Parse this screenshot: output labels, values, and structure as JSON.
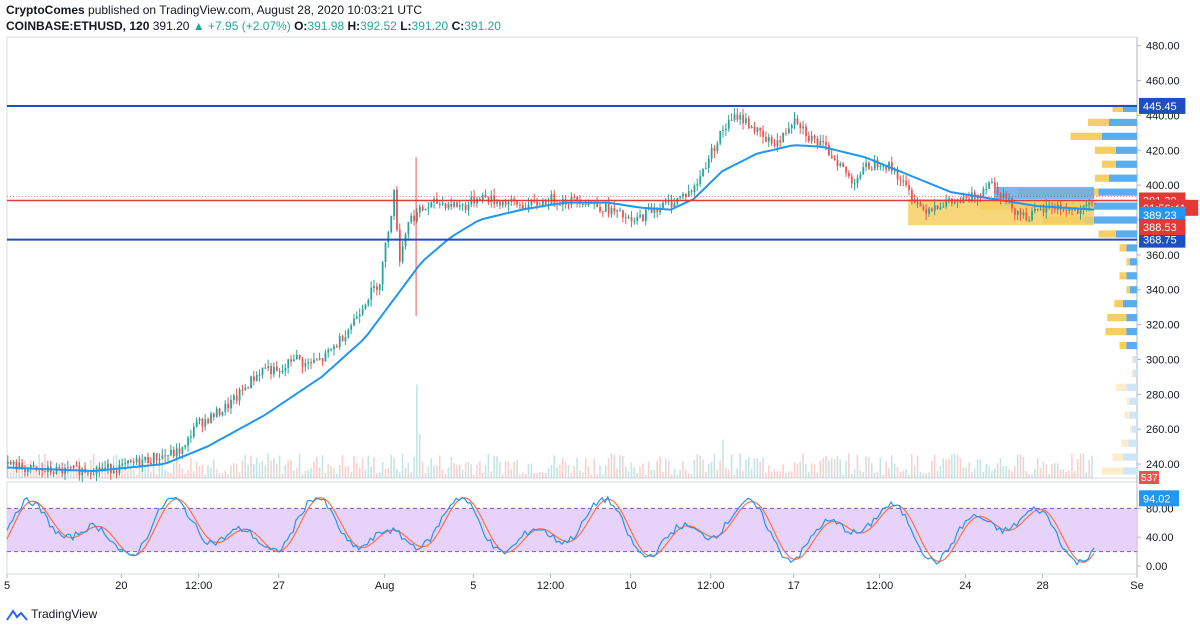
{
  "header": {
    "publisher": "CryptoComes",
    "published_text": "published on TradingView.com, August 28, 2020 10:03:21 UTC",
    "symbol": "COINBASE:ETHUSD, 120",
    "last": "391.20",
    "change": "+7.95 (+2.07%)",
    "o_label": "O:",
    "o": "391.98",
    "h_label": "H:",
    "h": "392.52",
    "l_label": "L:",
    "l": "391.20",
    "c_label": "C:",
    "c": "391.20"
  },
  "footer": {
    "brand": "TradingView"
  },
  "colors": {
    "up": "#26a69a",
    "down": "#ef5350",
    "ma": "#2196f3",
    "level_blue": "#1e4fbf",
    "level_red": "#e53935",
    "vp_blue": "#5aaeef",
    "vp_yellow": "#f6cf63",
    "stoch_fill": "#e1c8f7",
    "stoch_k": "#2196f3",
    "stoch_d": "#ff7043"
  },
  "chart_data": {
    "type": "candlestick",
    "y_ticks": [
      "480.00",
      "460.00",
      "440.00",
      "420.00",
      "400.00",
      "380.00",
      "360.00",
      "340.00",
      "320.00",
      "300.00",
      "280.00",
      "260.00",
      "240.00"
    ],
    "y_tick_values": [
      480,
      460,
      440,
      420,
      400,
      380,
      360,
      340,
      320,
      300,
      280,
      260,
      240
    ],
    "ylim": [
      232,
      485
    ],
    "x_ticks": [
      "5",
      "20",
      "12:00",
      "27",
      "Aug",
      "5",
      "12:00",
      "10",
      "12:00",
      "17",
      "12:00",
      "24",
      "28",
      "Se"
    ],
    "x_tick_index": [
      0,
      40,
      67,
      95,
      132,
      163,
      190,
      218,
      246,
      275,
      305,
      335,
      362,
      395
    ],
    "price_series": [
      [
        0,
        240
      ],
      [
        10,
        236
      ],
      [
        20,
        236
      ],
      [
        30,
        237
      ],
      [
        40,
        238
      ],
      [
        45,
        241
      ],
      [
        52,
        244
      ],
      [
        58,
        246
      ],
      [
        62,
        249
      ],
      [
        65,
        262
      ],
      [
        70,
        266
      ],
      [
        75,
        271
      ],
      [
        80,
        278
      ],
      [
        85,
        288
      ],
      [
        90,
        296
      ],
      [
        95,
        291
      ],
      [
        100,
        302
      ],
      [
        104,
        297
      ],
      [
        110,
        300
      ],
      [
        115,
        309
      ],
      [
        120,
        320
      ],
      [
        125,
        334
      ],
      [
        130,
        345
      ],
      [
        135,
        395
      ],
      [
        137,
        358
      ],
      [
        140,
        380
      ],
      [
        145,
        386
      ],
      [
        150,
        390
      ],
      [
        155,
        389
      ],
      [
        160,
        388
      ],
      [
        165,
        394
      ],
      [
        170,
        391
      ],
      [
        175,
        390
      ],
      [
        180,
        388
      ],
      [
        185,
        389
      ],
      [
        190,
        392
      ],
      [
        195,
        391
      ],
      [
        200,
        392
      ],
      [
        205,
        389
      ],
      [
        210,
        386
      ],
      [
        215,
        382
      ],
      [
        218,
        378
      ],
      [
        225,
        386
      ],
      [
        232,
        390
      ],
      [
        240,
        398
      ],
      [
        245,
        416
      ],
      [
        250,
        432
      ],
      [
        255,
        440
      ],
      [
        260,
        434
      ],
      [
        265,
        425
      ],
      [
        270,
        425
      ],
      [
        275,
        440
      ],
      [
        280,
        428
      ],
      [
        285,
        422
      ],
      [
        290,
        414
      ],
      [
        295,
        402
      ],
      [
        300,
        410
      ],
      [
        305,
        414
      ],
      [
        310,
        408
      ],
      [
        315,
        396
      ],
      [
        320,
        386
      ],
      [
        325,
        389
      ],
      [
        330,
        390
      ],
      [
        335,
        391
      ],
      [
        340,
        396
      ],
      [
        343,
        403
      ],
      [
        348,
        394
      ],
      [
        352,
        386
      ],
      [
        356,
        382
      ],
      [
        360,
        384
      ],
      [
        365,
        388
      ],
      [
        370,
        386
      ],
      [
        375,
        384
      ],
      [
        380,
        391
      ]
    ],
    "ma_series": [
      [
        0,
        238
      ],
      [
        30,
        236
      ],
      [
        55,
        240
      ],
      [
        70,
        250
      ],
      [
        90,
        268
      ],
      [
        110,
        290
      ],
      [
        125,
        312
      ],
      [
        135,
        334
      ],
      [
        145,
        356
      ],
      [
        155,
        370
      ],
      [
        165,
        380
      ],
      [
        180,
        386
      ],
      [
        195,
        390
      ],
      [
        210,
        390
      ],
      [
        222,
        387
      ],
      [
        232,
        386
      ],
      [
        240,
        392
      ],
      [
        250,
        408
      ],
      [
        262,
        418
      ],
      [
        275,
        423
      ],
      [
        285,
        422
      ],
      [
        300,
        416
      ],
      [
        315,
        406
      ],
      [
        330,
        396
      ],
      [
        345,
        392
      ],
      [
        360,
        388
      ],
      [
        380,
        386
      ]
    ],
    "levels": [
      {
        "name": "resistance",
        "value": 445.45,
        "label": "445.45",
        "color": "#1e4fbf"
      },
      {
        "name": "last-price",
        "value": 391.2,
        "label": "391.20",
        "color": "#e53935"
      },
      {
        "name": "countdown",
        "value": 387.0,
        "label": "01:56:41",
        "color": "#e53935"
      },
      {
        "name": "support",
        "value": 368.75,
        "label": "368.75",
        "color": "#1e4fbf"
      },
      {
        "name": "ma-value",
        "value": 383.0,
        "label": "389.23",
        "color": "#2196f3"
      },
      {
        "name": "low-mark",
        "value": 376.0,
        "label": "388.53",
        "color": "#e53935"
      }
    ],
    "volume_profile": [
      {
        "price": 444,
        "up": 30,
        "down": 40
      },
      {
        "price": 436,
        "up": 60,
        "down": 80
      },
      {
        "price": 428,
        "up": 90,
        "down": 100
      },
      {
        "price": 420,
        "up": 60,
        "down": 60
      },
      {
        "price": 412,
        "up": 40,
        "down": 60
      },
      {
        "price": 404,
        "up": 40,
        "down": 80
      },
      {
        "price": 396,
        "up": 230,
        "down": 110
      },
      {
        "price": 388,
        "up": 300,
        "down": 150
      },
      {
        "price": 380,
        "up": 120,
        "down": 150
      },
      {
        "price": 372,
        "up": 50,
        "down": 60
      },
      {
        "price": 364,
        "up": 20,
        "down": 30
      },
      {
        "price": 356,
        "up": 10,
        "down": 20
      },
      {
        "price": 348,
        "up": 20,
        "down": 30
      },
      {
        "price": 340,
        "up": 10,
        "down": 20
      },
      {
        "price": 332,
        "up": 25,
        "down": 40
      },
      {
        "price": 324,
        "up": 55,
        "down": 30
      },
      {
        "price": 316,
        "up": 60,
        "down": 30
      },
      {
        "price": 308,
        "up": 20,
        "down": 30
      },
      {
        "price": 300,
        "up": 5,
        "down": 10
      },
      {
        "price": 292,
        "up": 5,
        "down": 10
      },
      {
        "price": 284,
        "up": 30,
        "down": 30
      },
      {
        "price": 276,
        "up": 10,
        "down": 20
      },
      {
        "price": 268,
        "up": 15,
        "down": 20
      },
      {
        "price": 260,
        "up": 5,
        "down": 15
      },
      {
        "price": 252,
        "up": 20,
        "down": 25
      },
      {
        "price": 244,
        "up": 30,
        "down": 40
      },
      {
        "price": 236,
        "up": 60,
        "down": 40
      }
    ],
    "volume_label": "537",
    "stochastic": {
      "y_ticks": [
        "80.00",
        "40.00",
        "0.00"
      ],
      "y_tick_values": [
        80,
        40,
        0
      ],
      "band": [
        20,
        80
      ],
      "last_label": "94.02",
      "last": 94.02
    }
  }
}
